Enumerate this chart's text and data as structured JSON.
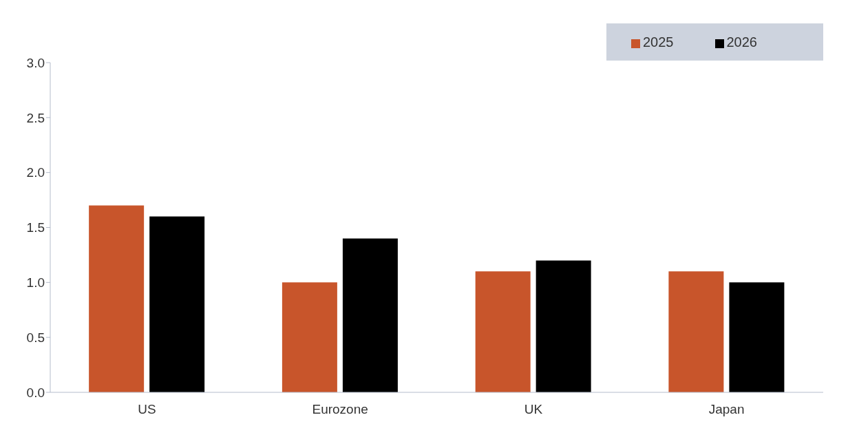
{
  "chart_data": {
    "type": "bar",
    "categories": [
      "US",
      "Eurozone",
      "UK",
      "Japan"
    ],
    "series": [
      {
        "name": "2025",
        "color": "#c8552b",
        "values": [
          1.7,
          1.0,
          1.1,
          1.1
        ]
      },
      {
        "name": "2026",
        "color": "#000000",
        "values": [
          1.6,
          1.4,
          1.2,
          1.0
        ]
      }
    ],
    "ylim": [
      0,
      3
    ],
    "yticks": [
      {
        "value": 0,
        "label": "0.0"
      },
      {
        "value": 0.5,
        "label": "0.5"
      },
      {
        "value": 1,
        "label": "1.0"
      },
      {
        "value": 1.5,
        "label": "1.5"
      },
      {
        "value": 2,
        "label": "2.0"
      },
      {
        "value": 2.5,
        "label": "2.5"
      },
      {
        "value": 3,
        "label": "3.0"
      }
    ],
    "grid": false,
    "legend": "top right"
  }
}
